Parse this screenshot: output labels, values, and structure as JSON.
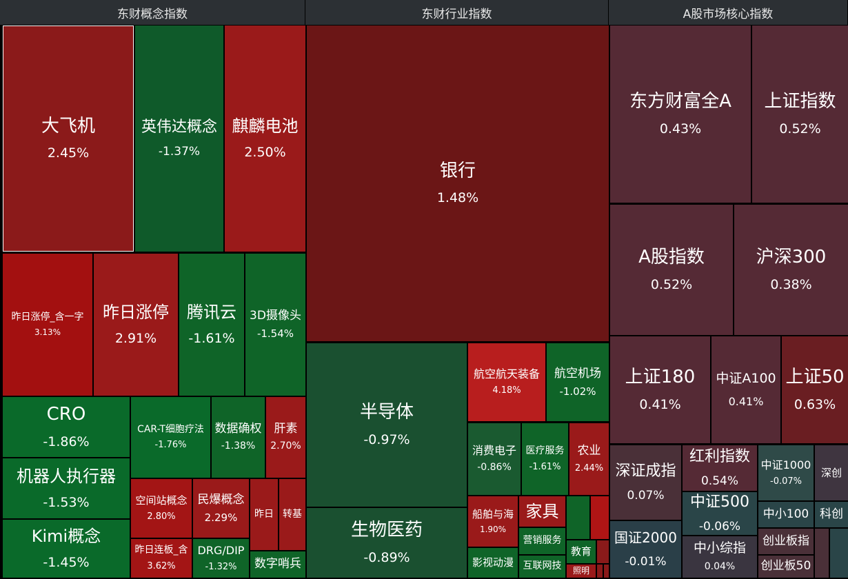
{
  "panels": [
    {
      "title": "东财概念指数",
      "tiles": [
        {
          "name": "大飞机",
          "change": "2.45%"
        },
        {
          "name": "英伟达概念",
          "change": "-1.37%"
        },
        {
          "name": "麒麟电池",
          "change": "2.50%"
        },
        {
          "name": "昨日涨停_含一字",
          "change": "3.13%"
        },
        {
          "name": "昨日涨停",
          "change": "2.91%"
        },
        {
          "name": "腾讯云",
          "change": "-1.61%"
        },
        {
          "name": "3D摄像头",
          "change": "-1.54%"
        },
        {
          "name": "CRO",
          "change": "-1.86%"
        },
        {
          "name": "机器人执行器",
          "change": "-1.53%"
        },
        {
          "name": "Kimi概念",
          "change": "-1.45%"
        },
        {
          "name": "CAR-T细胞疗法",
          "change": "-1.76%"
        },
        {
          "name": "数据确权",
          "change": "-1.38%"
        },
        {
          "name": "肝素",
          "change": "2.70%"
        },
        {
          "name": "空间站概念",
          "change": "2.80%"
        },
        {
          "name": "民爆概念",
          "change": "2.29%"
        },
        {
          "name": "昨日"
        },
        {
          "name": "转基"
        },
        {
          "name": "昨日连板_含",
          "change": "3.62%"
        },
        {
          "name": "DRG/DIP",
          "change": "-1.32%"
        },
        {
          "name": "数字哨兵"
        }
      ]
    },
    {
      "title": "东财行业指数",
      "tiles": [
        {
          "name": "银行",
          "change": "1.48%"
        },
        {
          "name": "半导体",
          "change": "-0.97%"
        },
        {
          "name": "生物医药",
          "change": "-0.89%"
        },
        {
          "name": "航空航天装备",
          "change": "4.18%"
        },
        {
          "name": "航空机场",
          "change": "-1.02%"
        },
        {
          "name": "消费电子",
          "change": "-0.86%"
        },
        {
          "name": "医疗服务",
          "change": "-1.61%"
        },
        {
          "name": "农业",
          "change": "2.44%"
        },
        {
          "name": "船舶与海",
          "change": "1.90%"
        },
        {
          "name": "家具"
        },
        {
          "name": "营销服务"
        },
        {
          "name": "互联网技"
        },
        {
          "name": "影视动漫"
        },
        {
          "name": "教育"
        },
        {
          "name": "照明"
        }
      ]
    },
    {
      "title": "A股市场核心指数",
      "tiles": [
        {
          "name": "东方财富全A",
          "change": "0.43%"
        },
        {
          "name": "上证指数",
          "change": "0.52%"
        },
        {
          "name": "A股指数",
          "change": "0.52%"
        },
        {
          "name": "沪深300",
          "change": "0.38%"
        },
        {
          "name": "上证180",
          "change": "0.41%"
        },
        {
          "name": "中证A100",
          "change": "0.41%"
        },
        {
          "name": "上证50",
          "change": "0.63%"
        },
        {
          "name": "深证成指",
          "change": "0.07%"
        },
        {
          "name": "红利指数",
          "change": "0.54%"
        },
        {
          "name": "中证1000",
          "change": "-0.07%"
        },
        {
          "name": "深创"
        },
        {
          "name": "中证500",
          "change": "-0.06%"
        },
        {
          "name": "中小100"
        },
        {
          "name": "科创"
        },
        {
          "name": "国证2000",
          "change": "-0.01%"
        },
        {
          "name": "中小综指",
          "change": "0.04%"
        },
        {
          "name": "创业板指"
        },
        {
          "name": "创业板50"
        }
      ]
    }
  ]
}
